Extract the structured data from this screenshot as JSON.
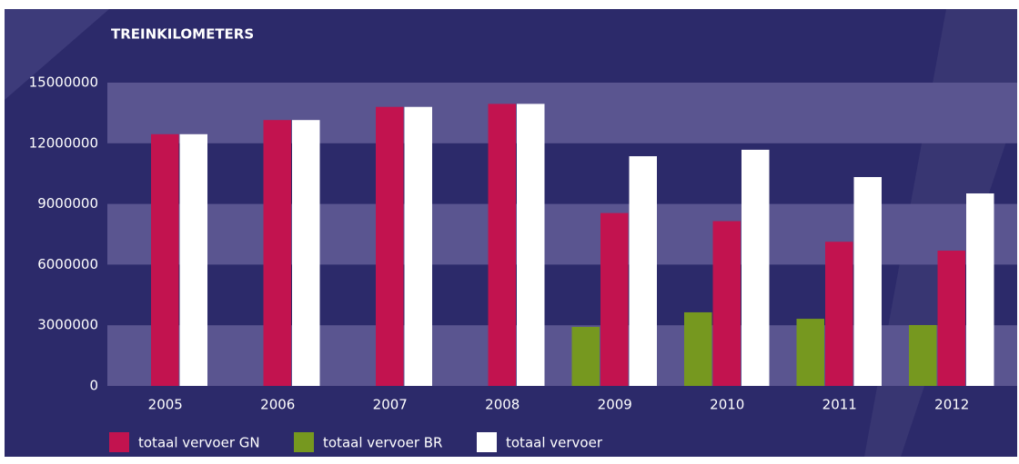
{
  "chart_data": {
    "type": "bar",
    "title": "TREINKILOMETERS",
    "categories": [
      "2005",
      "2006",
      "2007",
      "2008",
      "2009",
      "2010",
      "2011",
      "2012"
    ],
    "series": [
      {
        "name": "totaal vervoer GN",
        "color": "#c2134f",
        "values": [
          12450000,
          13150000,
          13800000,
          13950000,
          8550000,
          8150000,
          7130000,
          6690000
        ]
      },
      {
        "name": "totaal vervoer BR",
        "color": "#76981f",
        "values": [
          null,
          null,
          null,
          null,
          2920000,
          3640000,
          3320000,
          3010000
        ]
      },
      {
        "name": "totaal vervoer",
        "color": "#ffffff",
        "values": [
          12450000,
          13150000,
          13800000,
          13950000,
          11360000,
          11680000,
          10330000,
          9520000
        ]
      }
    ],
    "ylim": [
      0,
      15000000
    ],
    "yticks": [
      0,
      3000000,
      6000000,
      9000000,
      12000000,
      15000000
    ],
    "grid": true
  }
}
